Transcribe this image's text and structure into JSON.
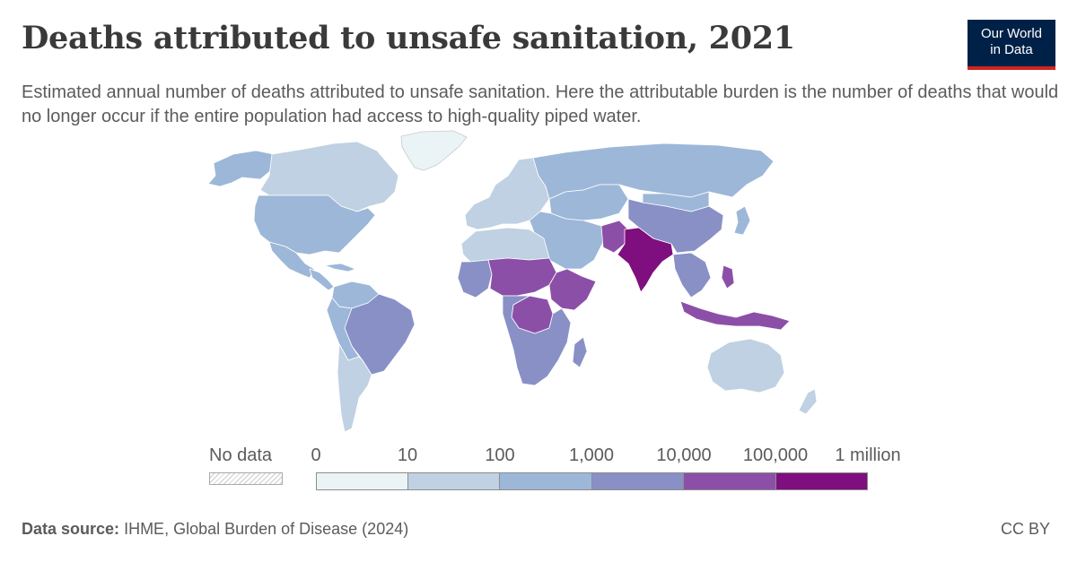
{
  "header": {
    "title": "Deaths attributed to unsafe sanitation, 2021",
    "subtitle": "Estimated annual number of deaths attributed to unsafe sanitation. Here the attributable burden is the number of deaths that would no longer occur if the entire population had access to high-quality piped water.",
    "logo_line1": "Our World",
    "logo_line2": "in Data"
  },
  "legend": {
    "no_data_label": "No data",
    "bins": [
      {
        "lower": "0",
        "upper": "10",
        "color": "#eaf4f6"
      },
      {
        "lower": "10",
        "upper": "100",
        "color": "#bfd1e2"
      },
      {
        "lower": "100",
        "upper": "1,000",
        "color": "#9db7d8"
      },
      {
        "lower": "1,000",
        "upper": "10,000",
        "color": "#8890c6"
      },
      {
        "lower": "10,000",
        "upper": "100,000",
        "color": "#8c4fa8"
      },
      {
        "lower": "100,000",
        "upper": "1 million",
        "color": "#7f0e7e"
      }
    ]
  },
  "map_data": {
    "type": "choropleth",
    "metric": "Deaths attributed to unsafe sanitation",
    "year": 2021,
    "regions": [
      {
        "name": "Greenland",
        "bin": "0–10"
      },
      {
        "name": "Canada",
        "bin": "10–100"
      },
      {
        "name": "Alaska (United States)",
        "bin": "100–1,000"
      },
      {
        "name": "United States",
        "bin": "100–1,000"
      },
      {
        "name": "Mexico",
        "bin": "100–1,000"
      },
      {
        "name": "Central America",
        "bin": "100–1,000"
      },
      {
        "name": "Venezuela / Colombia",
        "bin": "100–1,000"
      },
      {
        "name": "Brazil",
        "bin": "1,000–10,000"
      },
      {
        "name": "Peru / Bolivia",
        "bin": "100–1,000"
      },
      {
        "name": "Argentina / Chile",
        "bin": "10–100"
      },
      {
        "name": "Europe",
        "bin": "10–100"
      },
      {
        "name": "Russia",
        "bin": "100–1,000"
      },
      {
        "name": "Central Asia",
        "bin": "100–1,000"
      },
      {
        "name": "North Africa",
        "bin": "10–100"
      },
      {
        "name": "Middle East",
        "bin": "100–1,000"
      },
      {
        "name": "Sahel",
        "bin": "10,000–100,000"
      },
      {
        "name": "Ethiopia / Somalia",
        "bin": "10,000–100,000"
      },
      {
        "name": "DR Congo",
        "bin": "10,000–100,000"
      },
      {
        "name": "Central & Southern Africa",
        "bin": "1,000–10,000"
      },
      {
        "name": "Madagascar",
        "bin": "1,000–10,000"
      },
      {
        "name": "Pakistan",
        "bin": "10,000–100,000"
      },
      {
        "name": "India",
        "bin": "100,000–1 million"
      },
      {
        "name": "China",
        "bin": "1,000–10,000"
      },
      {
        "name": "Mongolia",
        "bin": "100–1,000"
      },
      {
        "name": "Southeast Asia",
        "bin": "1,000–10,000"
      },
      {
        "name": "Indonesia",
        "bin": "10,000–100,000"
      },
      {
        "name": "Philippines",
        "bin": "10,000–100,000"
      },
      {
        "name": "Japan",
        "bin": "100–1,000"
      },
      {
        "name": "Australia",
        "bin": "10–100"
      },
      {
        "name": "New Zealand",
        "bin": "10–100"
      }
    ]
  },
  "footer": {
    "source_label": "Data source:",
    "source_text": "IHME, Global Burden of Disease (2024)",
    "license": "CC BY"
  }
}
